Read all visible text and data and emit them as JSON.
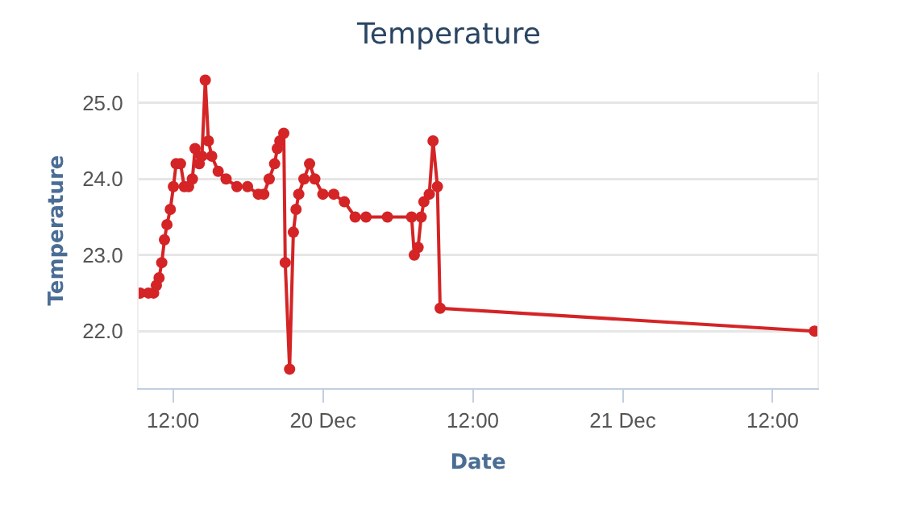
{
  "chart_data": {
    "type": "line",
    "title": "Temperature",
    "xlabel": "Date",
    "ylabel": "Temperature",
    "x": [
      "--12-19T09:23",
      "--12-19T10:02",
      "--12-19T10:27",
      "--12-19T10:40",
      "--12-19T10:53",
      "--12-19T11:06",
      "--12-19T11:19",
      "--12-19T11:31",
      "--12-19T11:47",
      "--12-19T12:02",
      "--12-19T12:15",
      "--12-19T12:36",
      "--12-19T12:54",
      "--12-19T13:15",
      "--12-19T13:33",
      "--12-19T13:46",
      "--12-19T14:06",
      "--12-19T14:19",
      "--12-19T14:35",
      "--12-19T14:50",
      "--12-19T15:06",
      "--12-19T15:37",
      "--12-19T16:15",
      "--12-19T17:07",
      "--12-19T17:58",
      "--12-19T18:50",
      "--12-19T19:16",
      "--12-19T19:42",
      "--12-19T20:08",
      "--12-19T20:21",
      "--12-19T20:33",
      "--12-19T20:52",
      "--12-19T20:59",
      "--12-19T21:20",
      "--12-19T21:38",
      "--12-19T21:51",
      "--12-19T22:04",
      "--12-19T22:29",
      "--12-19T22:56",
      "--12-19T23:21",
      "--12-20T00:00",
      "--12-20T00:52",
      "--12-20T01:43",
      "--12-20T02:35",
      "--12-20T03:27",
      "--12-20T05:10",
      "--12-20T07:06",
      "--12-20T07:19",
      "--12-20T07:37",
      "--12-20T07:52",
      "--12-20T08:05",
      "--12-20T08:31",
      "--12-20T08:49",
      "--12-20T09:10",
      "--12-20T09:23",
      "--12-21T15:21"
    ],
    "series": [
      {
        "color": "#d42426",
        "values": [
          22.5,
          22.5,
          22.5,
          22.6,
          22.7,
          22.9,
          23.2,
          23.4,
          23.6,
          23.9,
          24.2,
          24.2,
          23.9,
          23.9,
          24.0,
          24.4,
          24.2,
          24.3,
          25.3,
          24.5,
          24.3,
          24.1,
          24.0,
          23.9,
          23.9,
          23.8,
          23.8,
          24.0,
          24.2,
          24.4,
          24.5,
          24.6,
          22.9,
          21.5,
          23.3,
          23.6,
          23.8,
          24.0,
          24.2,
          24.0,
          23.8,
          23.8,
          23.7,
          23.5,
          23.5,
          23.5,
          23.5,
          23.0,
          23.1,
          23.5,
          23.7,
          23.8,
          24.5,
          23.9,
          22.3,
          22.0
        ]
      }
    ],
    "xlim": [
      "--12-19T09:15",
      "--12-21T15:35"
    ],
    "xticks": [
      {
        "value": "--12-19T12:00",
        "label": "12:00"
      },
      {
        "value": "--12-20",
        "label": "20 Dec"
      },
      {
        "value": "--12-20T12:00",
        "label": "12:00"
      },
      {
        "value": "--12-21",
        "label": "21 Dec"
      },
      {
        "value": "--12-21T12:00",
        "label": "12:00"
      }
    ],
    "ylim": [
      21.25,
      25.4
    ],
    "yticks": [
      {
        "value": 22,
        "label": "22.0"
      },
      {
        "value": 23,
        "label": "23.0"
      },
      {
        "value": 24,
        "label": "24.0"
      },
      {
        "value": 25,
        "label": "25.0"
      }
    ],
    "grid": "y",
    "marker": "circle",
    "line_style": "solid"
  }
}
